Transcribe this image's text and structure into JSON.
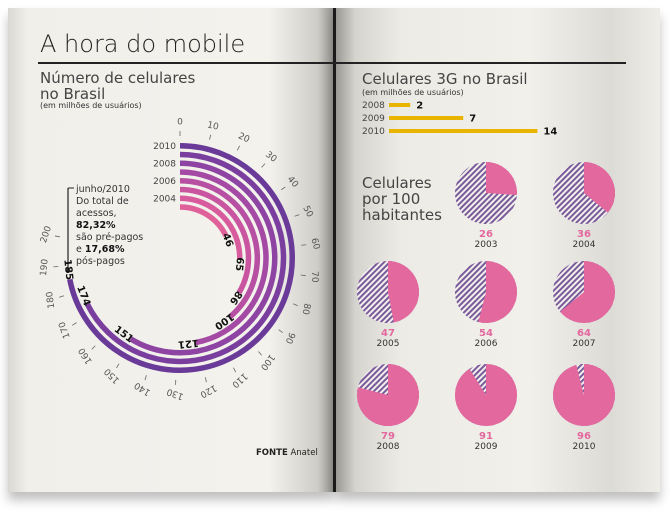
{
  "title": "A hora do mobile",
  "source": {
    "label": "FONTE",
    "value": "Anatel"
  },
  "note": {
    "date": "junho/2010",
    "line1": "Do total de acessos,",
    "prepaid": "82,32%",
    "line2": "são pré-pagos",
    "and": "e",
    "postpaid": "17,68%",
    "line3": "pós-pagos"
  },
  "chart_data": [
    {
      "type": "radial-bar",
      "title": "Número de celulares no Brasil",
      "subtitle": "(em milhões de usuários)",
      "axis": {
        "range": [
          0,
          200
        ],
        "ticks": [
          0,
          10,
          20,
          30,
          40,
          50,
          60,
          70,
          80,
          90,
          100,
          110,
          120,
          130,
          140,
          150,
          160,
          170,
          180,
          190,
          200
        ]
      },
      "labelled_years": [
        "2004",
        "2006",
        "2008",
        "2010"
      ],
      "years": [
        "2003",
        "2004",
        "2005",
        "2006",
        "2007",
        "2008",
        "2009",
        "2010"
      ],
      "values": [
        46,
        65,
        86,
        100,
        121,
        151,
        174,
        185
      ],
      "colors": [
        "#e0609a",
        "#d85b9d",
        "#c955a0",
        "#b74fa2",
        "#a449a4",
        "#8e44a3",
        "#7a3f9e",
        "#6a3a98"
      ]
    },
    {
      "type": "bar",
      "title": "Celulares 3G no Brasil",
      "subtitle": "(em milhões de usuários)",
      "categories": [
        "2008",
        "2009",
        "2010"
      ],
      "values": [
        2,
        7,
        14
      ],
      "color": "#e8b400"
    },
    {
      "type": "pie",
      "title": "Celulares por 100 habitantes",
      "categories": [
        "2003",
        "2004",
        "2005",
        "2006",
        "2007",
        "2008",
        "2009",
        "2010"
      ],
      "values": [
        26,
        36,
        47,
        54,
        64,
        79,
        91,
        96
      ],
      "max": 100,
      "color": "#e3689e",
      "rest_color": "#7a5a9a"
    }
  ]
}
